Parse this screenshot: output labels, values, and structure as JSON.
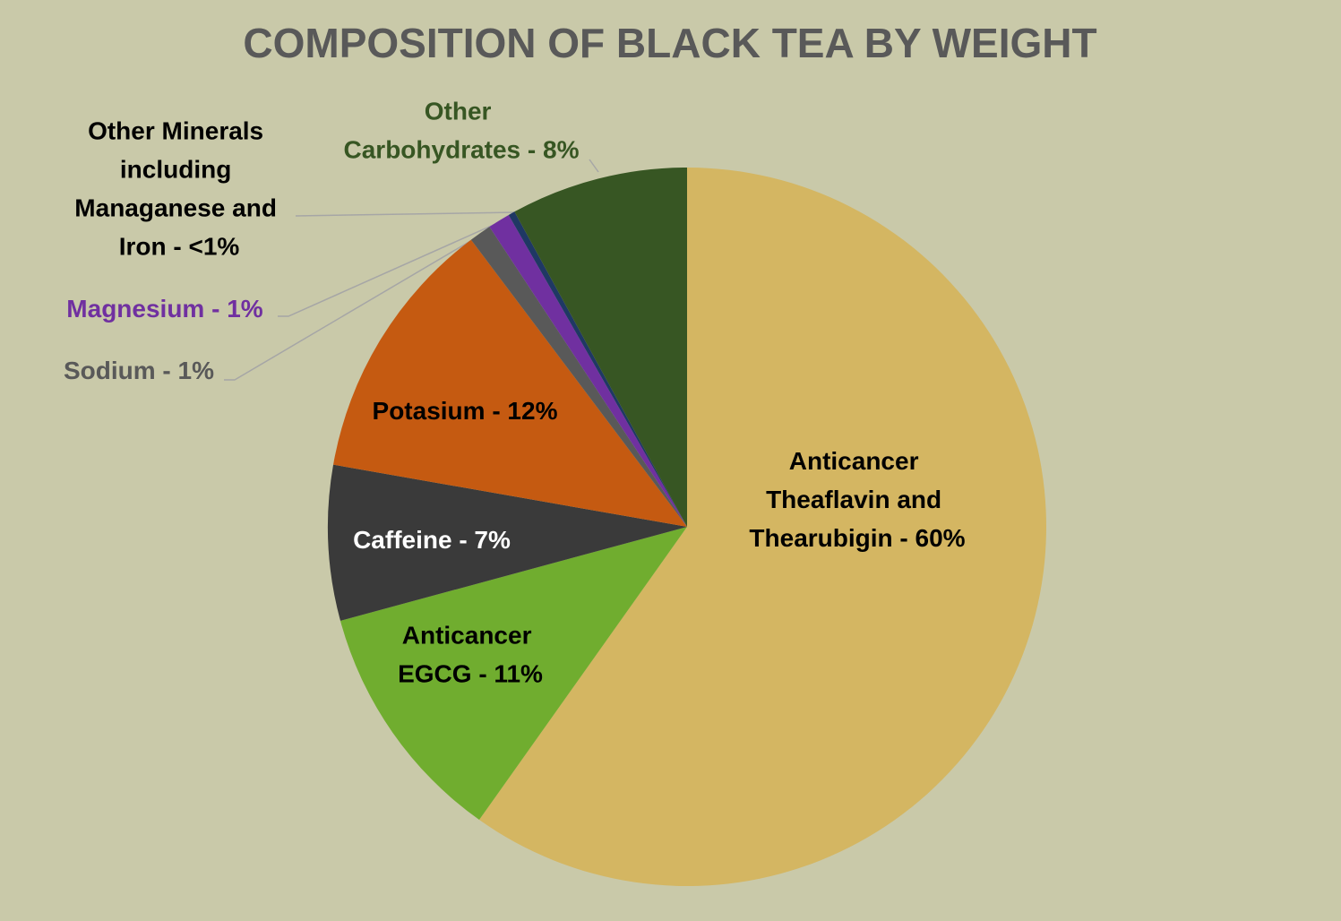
{
  "chart_data": {
    "type": "pie",
    "title": "COMPOSITION OF BLACK TEA BY WEIGHT",
    "values": [
      60,
      11,
      7,
      12,
      1,
      1,
      0.3,
      8
    ],
    "value_labels": [
      "Anticancer Theaflavin and Thearubigin - 60%",
      "Anticancer EGCG - 11%",
      "Caffeine - 7%",
      "Potasium - 12%",
      "Sodium - 1%",
      "Magnesium - 1%",
      "Other Minerals including Managanese and Iron - <1%",
      "Other Carbohydrates - 8%"
    ],
    "colors": [
      "#d4b662",
      "#70ad2f",
      "#3a3a3a",
      "#c55a11",
      "#595959",
      "#7030a0",
      "#1f3864",
      "#375623"
    ],
    "label_colors": [
      "#000000",
      "#000000",
      "#ffffff",
      "#000000",
      "#595959",
      "#7030a0",
      "#000000",
      "#375623"
    ]
  }
}
